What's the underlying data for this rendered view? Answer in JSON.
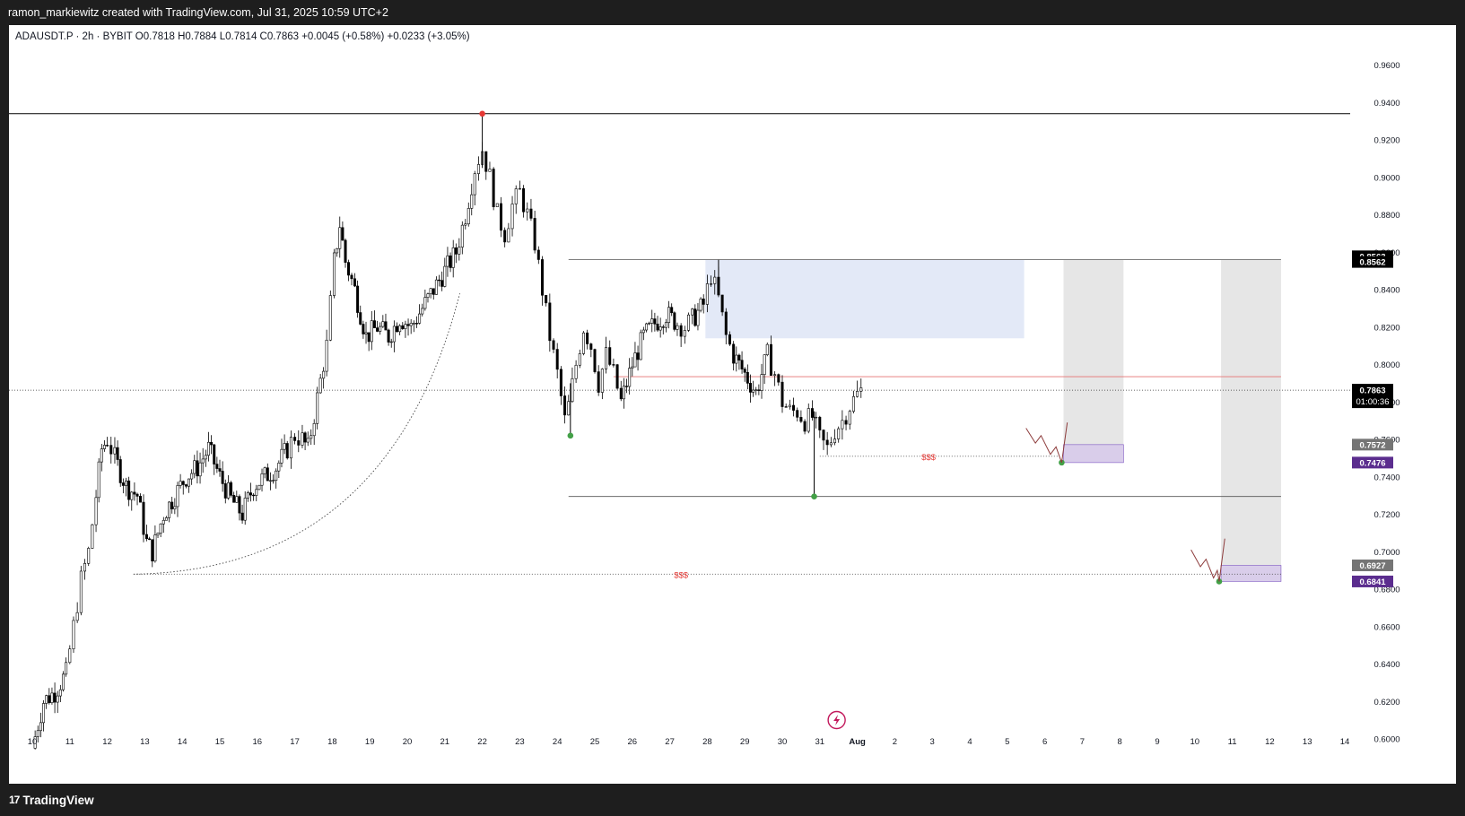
{
  "header": {
    "author_line": "ramon_markiewitz created with TradingView.com, Jul 31, 2025 10:59 UTC+2"
  },
  "footer": {
    "brand": "TradingView"
  },
  "chart_data": {
    "type": "candlestick",
    "symbol_line": "ADAUSDT.P · 2h · BYBIT  O0.7818  H0.7884  L0.7814  C0.7863  +0.0045 (+0.58%)  +0.0233 (+3.05%)",
    "ylim": [
      0.59,
      0.97
    ],
    "y_ticks": [
      "0.6000",
      "0.6200",
      "0.6400",
      "0.6600",
      "0.6800",
      "0.7000",
      "0.7200",
      "0.7400",
      "0.7600",
      "0.7800",
      "0.8000",
      "0.8200",
      "0.8400",
      "0.8600",
      "0.8800",
      "0.9000",
      "0.9200",
      "0.9400",
      "0.9600"
    ],
    "x_ticks": [
      "10",
      "11",
      "12",
      "13",
      "14",
      "15",
      "16",
      "17",
      "18",
      "19",
      "20",
      "21",
      "22",
      "23",
      "24",
      "25",
      "26",
      "27",
      "28",
      "29",
      "30",
      "31",
      "Aug",
      "2",
      "3",
      "4",
      "5",
      "6",
      "7",
      "8",
      "9",
      "10",
      "11",
      "12",
      "13",
      "14"
    ],
    "price_path": [
      [
        0.0,
        0.595
      ],
      [
        0.3,
        0.62
      ],
      [
        0.6,
        0.625
      ],
      [
        0.9,
        0.635
      ],
      [
        1.1,
        0.66
      ],
      [
        1.3,
        0.685
      ],
      [
        1.5,
        0.7
      ],
      [
        1.7,
        0.73
      ],
      [
        1.85,
        0.755
      ],
      [
        2.0,
        0.76
      ],
      [
        2.2,
        0.75
      ],
      [
        2.5,
        0.735
      ],
      [
        2.8,
        0.73
      ],
      [
        3.05,
        0.705
      ],
      [
        3.2,
        0.7
      ],
      [
        3.5,
        0.72
      ],
      [
        3.8,
        0.73
      ],
      [
        4.1,
        0.74
      ],
      [
        4.4,
        0.745
      ],
      [
        4.7,
        0.755
      ],
      [
        5.0,
        0.74
      ],
      [
        5.3,
        0.728
      ],
      [
        5.6,
        0.72
      ],
      [
        5.9,
        0.735
      ],
      [
        6.2,
        0.74
      ],
      [
        6.5,
        0.745
      ],
      [
        6.8,
        0.755
      ],
      [
        7.0,
        0.762
      ],
      [
        7.2,
        0.76
      ],
      [
        7.35,
        0.755
      ],
      [
        7.6,
        0.782
      ],
      [
        7.85,
        0.81
      ],
      [
        8.05,
        0.855
      ],
      [
        8.2,
        0.875
      ],
      [
        8.35,
        0.855
      ],
      [
        8.6,
        0.84
      ],
      [
        8.9,
        0.815
      ],
      [
        9.2,
        0.82
      ],
      [
        9.5,
        0.815
      ],
      [
        9.8,
        0.825
      ],
      [
        10.1,
        0.82
      ],
      [
        10.4,
        0.83
      ],
      [
        10.7,
        0.84
      ],
      [
        11.0,
        0.85
      ],
      [
        11.3,
        0.86
      ],
      [
        11.55,
        0.88
      ],
      [
        11.8,
        0.905
      ],
      [
        12.0,
        0.915
      ],
      [
        12.2,
        0.9
      ],
      [
        12.4,
        0.88
      ],
      [
        12.6,
        0.87
      ],
      [
        12.8,
        0.885
      ],
      [
        13.0,
        0.892
      ],
      [
        13.2,
        0.88
      ],
      [
        13.4,
        0.865
      ],
      [
        13.6,
        0.84
      ],
      [
        13.8,
        0.815
      ],
      [
        14.0,
        0.795
      ],
      [
        14.2,
        0.77
      ],
      [
        14.3,
        0.778
      ],
      [
        14.5,
        0.8
      ],
      [
        14.7,
        0.82
      ],
      [
        14.9,
        0.81
      ],
      [
        15.1,
        0.79
      ],
      [
        15.3,
        0.805
      ],
      [
        15.5,
        0.795
      ],
      [
        15.7,
        0.78
      ],
      [
        16.0,
        0.8
      ],
      [
        16.3,
        0.815
      ],
      [
        16.6,
        0.822
      ],
      [
        16.9,
        0.827
      ],
      [
        17.2,
        0.822
      ],
      [
        17.4,
        0.82
      ],
      [
        17.6,
        0.824
      ],
      [
        17.9,
        0.832
      ],
      [
        18.1,
        0.848
      ],
      [
        18.3,
        0.835
      ],
      [
        18.5,
        0.815
      ],
      [
        18.7,
        0.805
      ],
      [
        19.0,
        0.795
      ],
      [
        19.3,
        0.785
      ],
      [
        19.6,
        0.805
      ],
      [
        19.8,
        0.795
      ],
      [
        20.0,
        0.78
      ],
      [
        20.2,
        0.775
      ],
      [
        20.4,
        0.775
      ],
      [
        20.6,
        0.77
      ],
      [
        20.8,
        0.772
      ],
      [
        21.0,
        0.76
      ],
      [
        21.2,
        0.755
      ],
      [
        21.4,
        0.765
      ],
      [
        21.6,
        0.77
      ],
      [
        21.8,
        0.778
      ],
      [
        22.0,
        0.784
      ],
      [
        22.1,
        0.786
      ]
    ],
    "annotations": {
      "resistance_top": 0.934,
      "supply_zone": [
        0.814,
        0.856
      ],
      "zone_top_line": 0.856,
      "red_level": 0.7935,
      "current_price": 0.7863,
      "sss_level_1": 0.751,
      "low_level": 0.7295,
      "sss_level_2": 0.688,
      "sss_label": "$$$",
      "scenario_1_box": [
        0.7476,
        0.7572
      ],
      "scenario_2_box": [
        0.6841,
        0.6927
      ]
    },
    "price_labels": {
      "zone_top_a": "0.8563",
      "zone_top_b": "0.8562",
      "current": "0.7863",
      "countdown": "01:00:36",
      "entry_1_grey": "0.7572",
      "entry_1_purple": "0.7476",
      "entry_2_grey": "0.6927",
      "entry_2_purple": "0.6841"
    },
    "colors": {
      "up": "#000000",
      "down": "#000000",
      "supply_zone": "#e3e9f7",
      "grey_zone": "#e6e6e6",
      "purple_box": "#d9cdea",
      "purple_label": "#5b2d8e",
      "red_line": "#e57373",
      "sss_text": "#e53935",
      "green_dot": "#43a047",
      "red_dot": "#e53935"
    }
  }
}
